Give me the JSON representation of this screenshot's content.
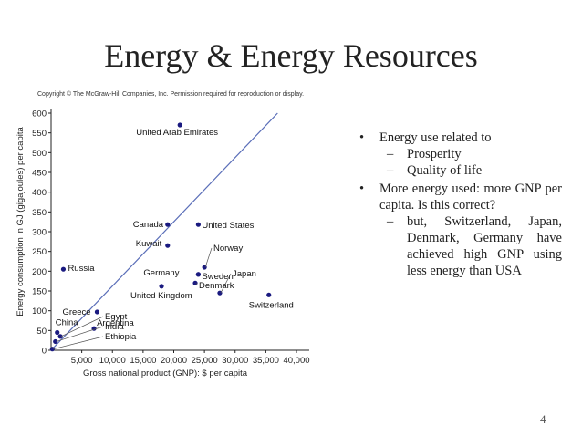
{
  "slide": {
    "title": "Energy & Energy Resources",
    "copyright": "Copyright © The McGraw-Hill Companies, Inc. Permission required for reproduction or display.",
    "page_number": "4"
  },
  "bullets": [
    {
      "text": "Energy use related to",
      "sub": [
        "Prosperity",
        "Quality of life"
      ]
    },
    {
      "text": "More energy used: more GNP per capita. Is this correct?",
      "sub": [
        "but, Switzerland, Japan, Denmark, Germany have achieved high GNP using less energy than USA"
      ]
    }
  ],
  "markers": {
    "bullet": "•",
    "dash": "–"
  },
  "colors": {
    "point": "#1a1a80",
    "trend_line": "#5a6eb8",
    "leader": "#555555",
    "axis": "#222222"
  },
  "chart_data": {
    "type": "scatter",
    "xlabel": "Gross national product (GNP): $ per capita",
    "ylabel": "Energy consumption in GJ (gigajoules) per capita",
    "xlim": [
      0,
      40000
    ],
    "ylim": [
      0,
      600
    ],
    "x_ticks": [
      5000,
      10000,
      15000,
      20000,
      25000,
      30000,
      35000,
      40000
    ],
    "x_tick_labels": [
      "5,000",
      "10,000",
      "15,000",
      "20,000",
      "25,000",
      "30,000",
      "35,000",
      "40,000"
    ],
    "y_ticks": [
      0,
      50,
      100,
      150,
      200,
      250,
      300,
      350,
      400,
      450,
      500,
      550,
      600
    ],
    "y_tick_labels": [
      "0",
      "50",
      "100",
      "150",
      "200",
      "250",
      "300",
      "350",
      "400",
      "450",
      "500",
      "550",
      "600"
    ],
    "grid": false,
    "trend_line": {
      "from": [
        0,
        0
      ],
      "to": [
        40000,
        650
      ]
    },
    "points": [
      {
        "label": "United Arab Emirates",
        "x": 21000,
        "y": 570
      },
      {
        "label": "Canada",
        "x": 19000,
        "y": 318
      },
      {
        "label": "United States",
        "x": 24000,
        "y": 318
      },
      {
        "label": "Kuwait",
        "x": 19000,
        "y": 265
      },
      {
        "label": "Russia",
        "x": 2000,
        "y": 205
      },
      {
        "label": "Norway",
        "x": 25000,
        "y": 210
      },
      {
        "label": "Germany",
        "x": 24000,
        "y": 192
      },
      {
        "label": "Sweden",
        "x": 24000,
        "y": 192
      },
      {
        "label": "United Kingdom",
        "x": 18000,
        "y": 162
      },
      {
        "label": "Japan",
        "x": 27500,
        "y": 145
      },
      {
        "label": "Denmark",
        "x": 23500,
        "y": 170
      },
      {
        "label": "Switzerland",
        "x": 35500,
        "y": 140
      },
      {
        "label": "Greece",
        "x": 7500,
        "y": 97
      },
      {
        "label": "Argentina",
        "x": 7000,
        "y": 55
      },
      {
        "label": "China",
        "x": 1000,
        "y": 45
      },
      {
        "label": "Egypt",
        "x": 1500,
        "y": 35
      },
      {
        "label": "India",
        "x": 700,
        "y": 22
      },
      {
        "label": "Ethiopia",
        "x": 200,
        "y": 3
      }
    ]
  }
}
